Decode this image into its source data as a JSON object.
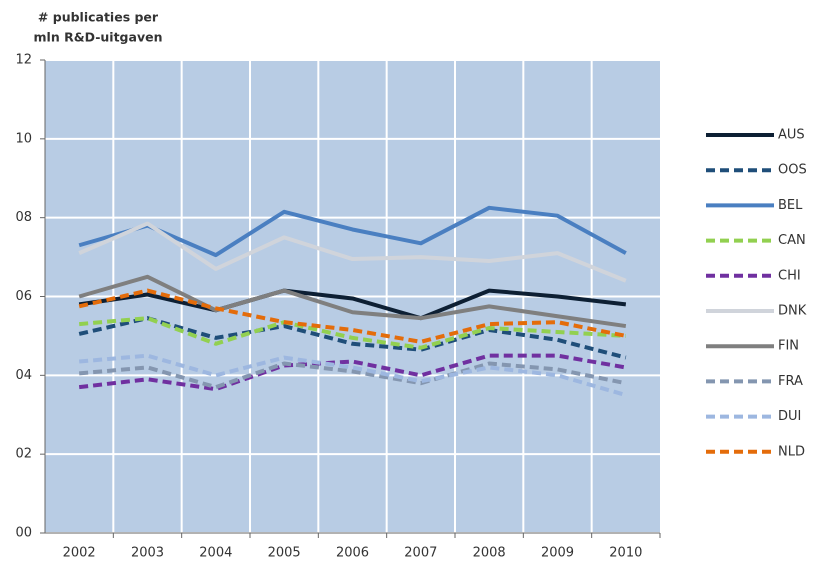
{
  "chart_data": {
    "type": "line",
    "title": [
      "# publicaties per",
      "mln R&D-uitgaven"
    ],
    "categories": [
      "2002",
      "2003",
      "2004",
      "2005",
      "2006",
      "2007",
      "2008",
      "2009",
      "2010"
    ],
    "ylim": [
      0,
      12
    ],
    "yticks": [
      {
        "value": 0,
        "label": "00"
      },
      {
        "value": 2,
        "label": "02"
      },
      {
        "value": 4,
        "label": "04"
      },
      {
        "value": 6,
        "label": "06"
      },
      {
        "value": 8,
        "label": "08"
      },
      10,
      12
    ],
    "grid": true,
    "legend": "right",
    "series": [
      {
        "name": "AUS",
        "color": "#0d1f33",
        "dashed": false,
        "values": [
          5.8,
          6.05,
          5.65,
          6.15,
          5.95,
          5.45,
          6.15,
          6.0,
          5.8
        ]
      },
      {
        "name": "OOS",
        "color": "#1f4e79",
        "dashed": true,
        "values": [
          5.05,
          5.45,
          4.95,
          5.25,
          4.8,
          4.65,
          5.15,
          4.9,
          4.45
        ]
      },
      {
        "name": "BEL",
        "color": "#4a7fc1",
        "dashed": false,
        "values": [
          7.3,
          7.8,
          7.05,
          8.15,
          7.7,
          7.35,
          8.25,
          8.05,
          7.1
        ]
      },
      {
        "name": "CAN",
        "color": "#92d050",
        "dashed": true,
        "values": [
          5.3,
          5.45,
          4.8,
          5.35,
          4.95,
          4.7,
          5.2,
          5.1,
          5.0
        ]
      },
      {
        "name": "CHI",
        "color": "#7030a0",
        "dashed": true,
        "values": [
          3.7,
          3.9,
          3.65,
          4.25,
          4.35,
          4.0,
          4.5,
          4.5,
          4.2
        ]
      },
      {
        "name": "DNK",
        "color": "#d0d4db",
        "dashed": false,
        "values": [
          7.1,
          7.85,
          6.7,
          7.5,
          6.95,
          7.0,
          6.9,
          7.1,
          6.4
        ]
      },
      {
        "name": "FIN",
        "color": "#7f7f7f",
        "dashed": false,
        "values": [
          6.0,
          6.5,
          5.65,
          6.15,
          5.6,
          5.45,
          5.75,
          5.5,
          5.25
        ]
      },
      {
        "name": "FRA",
        "color": "#8496b0",
        "dashed": true,
        "values": [
          4.05,
          4.2,
          3.7,
          4.3,
          4.1,
          3.8,
          4.3,
          4.15,
          3.8
        ]
      },
      {
        "name": "DUI",
        "color": "#9db7e0",
        "dashed": true,
        "values": [
          4.35,
          4.5,
          4.0,
          4.45,
          4.2,
          3.85,
          4.2,
          4.0,
          3.5
        ]
      },
      {
        "name": "NLD",
        "color": "#e46c0a",
        "dashed": true,
        "values": [
          5.75,
          6.15,
          5.7,
          5.35,
          5.15,
          4.85,
          5.3,
          5.35,
          5.0
        ]
      }
    ]
  }
}
